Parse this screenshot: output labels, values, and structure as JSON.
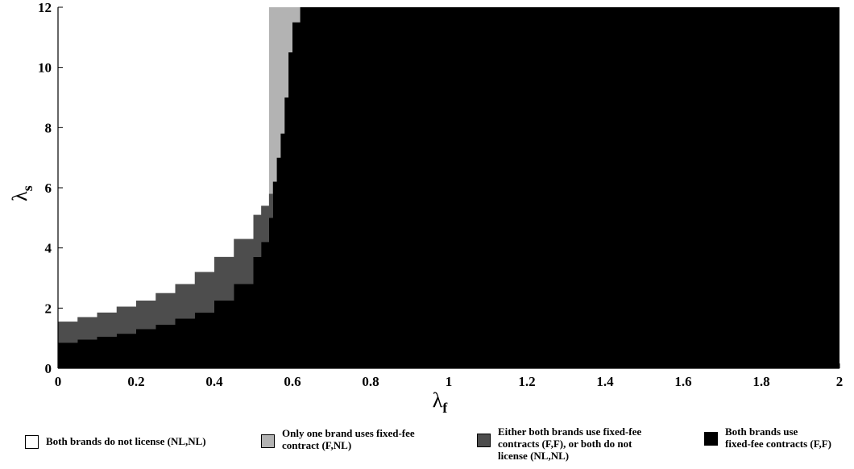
{
  "chart_data": {
    "type": "heatmap",
    "xlabel": "λ",
    "xlabel_sub": "f",
    "ylabel": "λ",
    "ylabel_sub": "s",
    "xlim": [
      0,
      2
    ],
    "ylim": [
      0,
      12
    ],
    "x_ticks": [
      "0",
      "0.2",
      "0.4",
      "0.6",
      "0.8",
      "1",
      "1.2",
      "1.4",
      "1.6",
      "1.8",
      "2"
    ],
    "y_ticks": [
      "0",
      "2",
      "4",
      "6",
      "8",
      "10",
      "12"
    ],
    "colors": {
      "NL_NL": "#ffffff",
      "F_NL": "#b3b3b3",
      "mixed": "#4d4d4d",
      "F_F": "#000000"
    },
    "region_order_by_lambda_s": [
      "F_F",
      "mixed",
      "NL_NL",
      "F_NL"
    ],
    "boundaries": {
      "lambda_f": [
        0,
        0.05,
        0.1,
        0.15,
        0.2,
        0.25,
        0.3,
        0.35,
        0.4,
        0.45,
        0.5,
        0.52,
        0.54,
        0.55,
        0.56,
        0.57,
        0.58,
        0.59,
        0.6,
        0.62,
        0.65,
        2.0
      ],
      "ff_upper": [
        0.85,
        0.95,
        1.05,
        1.15,
        1.3,
        1.45,
        1.65,
        1.85,
        2.25,
        2.8,
        3.7,
        4.2,
        5.0,
        6.2,
        7.0,
        7.8,
        9.0,
        10.5,
        11.5,
        12,
        12,
        12
      ],
      "mixed_upper": [
        1.55,
        1.7,
        1.85,
        2.05,
        2.25,
        2.5,
        2.8,
        3.2,
        3.7,
        4.3,
        5.1,
        5.4,
        5.8,
        6.2,
        7.0,
        7.8,
        9.0,
        10.5,
        11.5,
        12,
        12,
        12
      ],
      "nl_upper": [
        12,
        12,
        12,
        12,
        12,
        12,
        12,
        12,
        12,
        12,
        12,
        12,
        5.8,
        6.2,
        7.0,
        7.8,
        9.0,
        10.5,
        11.5,
        12,
        12,
        12
      ]
    },
    "legend": [
      {
        "key": "NL_NL",
        "label": "Both brands do not license (NL,NL)"
      },
      {
        "key": "F_NL",
        "label": "Only one brand uses fixed-fee\ncontract (F,NL)"
      },
      {
        "key": "mixed",
        "label": "Either both brands use fixed-fee\ncontracts (F,F), or both do not\nlicense (NL,NL)"
      },
      {
        "key": "F_F",
        "label": "Both brands use\nfixed-fee contracts (F,F)"
      }
    ]
  }
}
